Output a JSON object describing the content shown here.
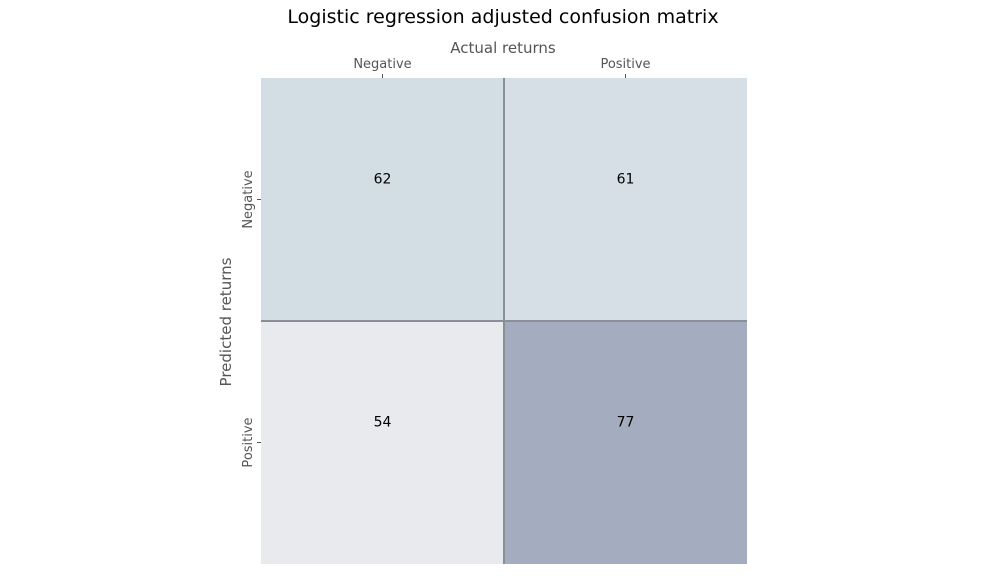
{
  "chart_data": {
    "type": "heatmap",
    "title": "Logistic regression adjusted confusion matrix",
    "xlabel": "Actual returns",
    "ylabel": "Predicted returns",
    "x_categories": [
      "Negative",
      "Positive"
    ],
    "y_categories": [
      "Negative",
      "Positive"
    ],
    "values": [
      [
        62,
        61
      ],
      [
        54,
        77
      ]
    ],
    "x_axis_position": "top",
    "colorbar": false,
    "colors": {
      "low": "#e8eaed",
      "mid": "#d2dde4",
      "high": "#a3adbf",
      "grid_line": "#8a8e96"
    }
  }
}
